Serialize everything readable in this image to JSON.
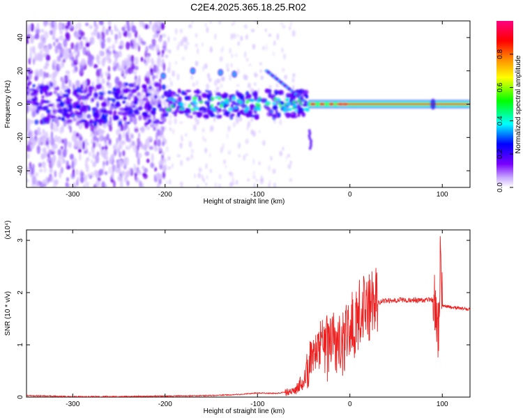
{
  "title": "C2E4.2025.365.18.25.R02",
  "chart_data": [
    {
      "type": "heatmap",
      "title": "C2E4.2025.365.18.25.R02",
      "xlabel": "Height of straight line (km)",
      "ylabel": "Frequency (Hz)",
      "xlim": [
        -350,
        130
      ],
      "ylim": [
        -50,
        50
      ],
      "xticks": [
        -300,
        -200,
        -100,
        0,
        100
      ],
      "xtick_labels": [
        "-300",
        "-200",
        "-100",
        "0",
        "100"
      ],
      "yticks": [
        -40,
        -20,
        0,
        20,
        40
      ],
      "ytick_labels": [
        "-40",
        "-20",
        "0",
        "20",
        "40"
      ],
      "colorbar": {
        "label": "Normalized spectral amplitude",
        "range": [
          0,
          1
        ],
        "ticks": [
          0.0,
          0.2,
          0.4,
          0.6,
          0.8
        ],
        "tick_labels": [
          "0.0",
          "0.2",
          "0.4",
          "0.6",
          "0.8"
        ],
        "colors": [
          "#ffffff",
          "#c8a8ff",
          "#7a00ff",
          "#0000ff",
          "#00ffff",
          "#00ff00",
          "#ffff00",
          "#ff8000",
          "#ff0000",
          "#ff0080"
        ]
      },
      "features": {
        "noise_region_x": [
          -350,
          -200
        ],
        "carrier_frequency_hz": 0,
        "tone_start_x": -45,
        "upper_branch": {
          "x": [
            -90,
            -45
          ],
          "y": [
            20,
            0
          ]
        }
      }
    },
    {
      "type": "line",
      "xlabel": "Height of straight line (km)",
      "ylabel": "SNR (10 * v/v)",
      "yscale_label": "(x10⁴)",
      "xlim": [
        -350,
        130
      ],
      "ylim": [
        0,
        3.2
      ],
      "xticks": [
        -300,
        -200,
        -100,
        0,
        100
      ],
      "xtick_labels": [
        "-300",
        "-200",
        "-100",
        "0",
        "100"
      ],
      "yticks": [
        0,
        1,
        2,
        3
      ],
      "ytick_labels": [
        "0",
        "1",
        "2",
        "3"
      ],
      "color": "#ee2020",
      "series": [
        {
          "name": "SNR",
          "x": [
            -350,
            -300,
            -250,
            -200,
            -150,
            -120,
            -100,
            -80,
            -60,
            -50,
            -45,
            -40,
            -30,
            -20,
            -10,
            -5,
            0,
            10,
            20,
            30,
            40,
            60,
            80,
            88,
            92,
            96,
            98,
            100,
            110,
            120,
            130
          ],
          "y": [
            0.03,
            0.01,
            0.01,
            0.02,
            0.03,
            0.05,
            0.08,
            0.07,
            0.12,
            0.3,
            0.6,
            0.75,
            0.9,
            0.95,
            1.05,
            1.1,
            1.3,
            1.55,
            1.75,
            1.8,
            1.85,
            1.86,
            1.85,
            1.87,
            1.8,
            1.3,
            3.0,
            1.75,
            1.72,
            1.7,
            1.68
          ]
        }
      ]
    }
  ]
}
